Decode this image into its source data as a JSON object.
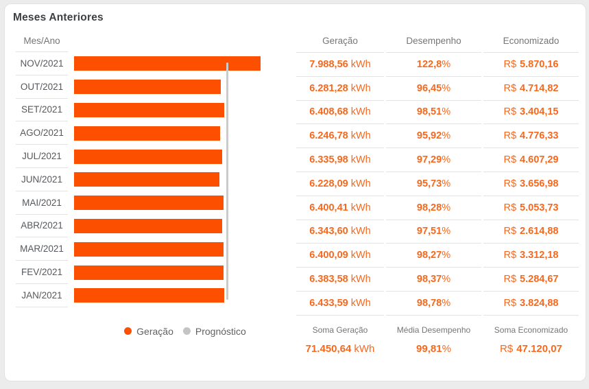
{
  "card": {
    "title": "Meses Anteriores"
  },
  "colors": {
    "bar_orange": "#FC5000",
    "text_orange": "#F8681C",
    "prognostic_gray": "#C4C4C4",
    "separator_gray": "#E3E3E3",
    "muted_text": "#757575",
    "page_background": "#ECECEC"
  },
  "units": {
    "energy": "kWh",
    "percent": "%",
    "currency": "R$"
  },
  "chart": {
    "column_header": "Mes/Ano",
    "legend": [
      {
        "label": "Geração",
        "color": "#FC5000"
      },
      {
        "label": "Prognóstico",
        "color": "#C4C4C4"
      }
    ]
  },
  "table": {
    "headers": [
      "Geração",
      "Desempenho",
      "Economizado"
    ],
    "rows": [
      {
        "month": "NOV/2021",
        "geracao": "7.988,56",
        "desempenho": "122,8",
        "economizado": "5.870,16"
      },
      {
        "month": "OUT/2021",
        "geracao": "6.281,28",
        "desempenho": "96,45",
        "economizado": "4.714,82"
      },
      {
        "month": "SET/2021",
        "geracao": "6.408,68",
        "desempenho": "98,51",
        "economizado": "3.404,15"
      },
      {
        "month": "AGO/2021",
        "geracao": "6.246,78",
        "desempenho": "95,92",
        "economizado": "4.776,33"
      },
      {
        "month": "JUL/2021",
        "geracao": "6.335,98",
        "desempenho": "97,29",
        "economizado": "4.607,29"
      },
      {
        "month": "JUN/2021",
        "geracao": "6.228,09",
        "desempenho": "95,73",
        "economizado": "3.656,98"
      },
      {
        "month": "MAI/2021",
        "geracao": "6.400,41",
        "desempenho": "98,28",
        "economizado": "5.053,73"
      },
      {
        "month": "ABR/2021",
        "geracao": "6.343,60",
        "desempenho": "97,51",
        "economizado": "2.614,88"
      },
      {
        "month": "MAR/2021",
        "geracao": "6.400,09",
        "desempenho": "98,27",
        "economizado": "3.312,18"
      },
      {
        "month": "FEV/2021",
        "geracao": "6.383,58",
        "desempenho": "98,37",
        "economizado": "5.284,67"
      },
      {
        "month": "JAN/2021",
        "geracao": "6.433,59",
        "desempenho": "98,78",
        "economizado": "3.824,88"
      }
    ],
    "footer": {
      "geracao_label": "Soma Geração",
      "geracao_value": "71.450,64",
      "desempenho_label": "Média Desempenho",
      "desempenho_value": "99,81",
      "economizado_label": "Soma Economizado",
      "economizado_value": "47.120,07"
    }
  },
  "chart_data": {
    "type": "bar",
    "orientation": "horizontal",
    "title": "Meses Anteriores",
    "categories": [
      "NOV/2021",
      "OUT/2021",
      "SET/2021",
      "AGO/2021",
      "JUL/2021",
      "JUN/2021",
      "MAI/2021",
      "ABR/2021",
      "MAR/2021",
      "FEV/2021",
      "JAN/2021"
    ],
    "series": [
      {
        "name": "Geração",
        "values": [
          7988.56,
          6281.28,
          6408.68,
          6246.78,
          6335.98,
          6228.09,
          6400.41,
          6343.6,
          6400.09,
          6383.58,
          6433.59
        ]
      },
      {
        "name": "Prognóstico",
        "type": "reference-line",
        "value": 6505
      }
    ],
    "xlabel": "kWh",
    "ylabel": "Mes/Ano",
    "xlim": [
      0,
      9500
    ],
    "grid": false,
    "legend_position": "bottom"
  }
}
